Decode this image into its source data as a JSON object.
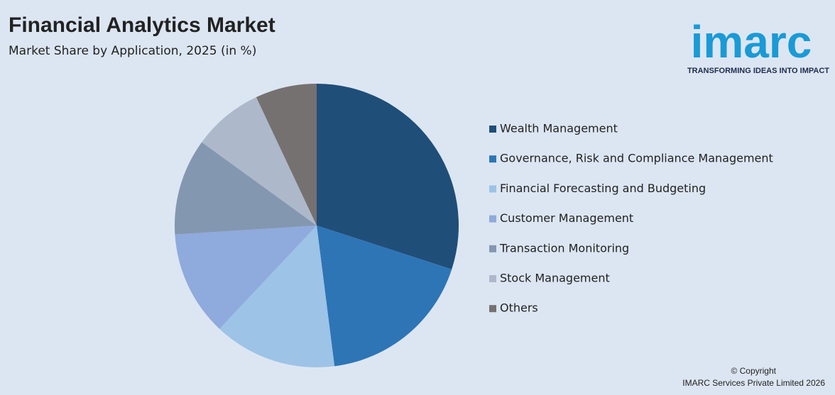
{
  "chart_data": {
    "type": "pie",
    "title": "Financial Analytics Market",
    "subtitle": "Market Share by Application, 2025 (in %)",
    "categories": [
      "Wealth Management",
      "Governance, Risk and Compliance Management",
      "Financial Forecasting and Budgeting",
      "Customer Management",
      "Transaction Monitoring",
      "Stock Management",
      "Others"
    ],
    "values": [
      30,
      18,
      14,
      12,
      11,
      8,
      7
    ],
    "colors": [
      "#1f4e79",
      "#2e75b6",
      "#9dc3e6",
      "#8faadc",
      "#8497b0",
      "#adb9ca",
      "#767171"
    ],
    "legend": "right"
  },
  "logo": {
    "name": "imarc",
    "tagline": "TRANSFORMING IDEAS INTO IMPACT"
  },
  "footer": {
    "copyright": "© Copyright",
    "company": "IMARC Services Private Limited 2026"
  }
}
